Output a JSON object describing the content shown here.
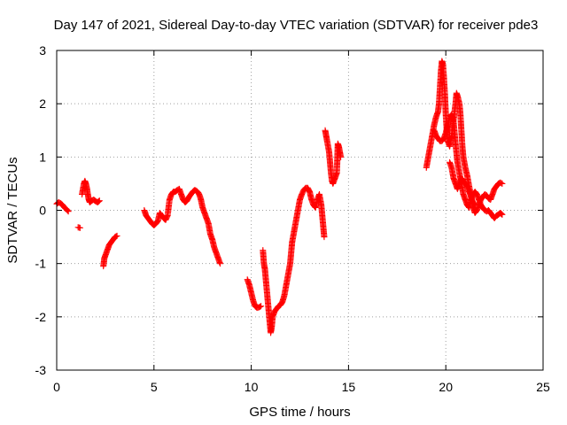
{
  "chart_data": {
    "type": "scatter",
    "title": "Day 147 of 2021, Sidereal Day-to-day VTEC variation (SDTVAR) for receiver pde3",
    "xlabel": "GPS time / hours",
    "ylabel": "SDTVAR / TECUs",
    "xlim": [
      0,
      25
    ],
    "ylim": [
      -3,
      3
    ],
    "xticks": [
      0,
      5,
      10,
      15,
      20,
      25
    ],
    "yticks": [
      -3,
      -2,
      -1,
      0,
      1,
      2,
      3
    ],
    "xtick_labels": [
      "0",
      "5",
      "10",
      "15",
      "20",
      "25"
    ],
    "ytick_labels": [
      "-3",
      "-2",
      "-1",
      "0",
      "1",
      "2",
      "3"
    ],
    "grid": true,
    "marker": "+",
    "color": "#ff0000",
    "series": [
      {
        "name": "pde3",
        "segments": [
          [
            [
              0.0,
              0.12
            ],
            [
              0.1,
              0.15
            ],
            [
              0.2,
              0.13
            ],
            [
              0.3,
              0.1
            ],
            [
              0.4,
              0.05
            ],
            [
              0.5,
              0.02
            ],
            [
              0.6,
              -0.02
            ]
          ],
          [
            [
              1.1,
              -0.32
            ],
            [
              1.2,
              -0.33
            ]
          ],
          [
            [
              1.3,
              0.3
            ],
            [
              1.4,
              0.5
            ],
            [
              1.45,
              0.55
            ],
            [
              1.5,
              0.5
            ],
            [
              1.55,
              0.42
            ],
            [
              1.6,
              0.3
            ],
            [
              1.65,
              0.2
            ],
            [
              1.7,
              0.15
            ],
            [
              1.8,
              0.18
            ],
            [
              1.9,
              0.2
            ],
            [
              2.0,
              0.17
            ],
            [
              2.1,
              0.15
            ],
            [
              2.2,
              0.18
            ]
          ],
          [
            [
              2.4,
              -1.05
            ],
            [
              2.45,
              -0.9
            ],
            [
              2.5,
              -0.85
            ],
            [
              2.6,
              -0.75
            ],
            [
              2.7,
              -0.65
            ],
            [
              2.8,
              -0.6
            ],
            [
              2.9,
              -0.55
            ],
            [
              3.0,
              -0.5
            ],
            [
              3.1,
              -0.48
            ]
          ],
          [
            [
              4.5,
              0.0
            ],
            [
              4.6,
              -0.1
            ],
            [
              4.7,
              -0.15
            ],
            [
              4.8,
              -0.2
            ],
            [
              4.9,
              -0.25
            ],
            [
              5.0,
              -0.28
            ],
            [
              5.1,
              -0.25
            ],
            [
              5.2,
              -0.2
            ],
            [
              5.3,
              -0.05
            ],
            [
              5.4,
              -0.1
            ],
            [
              5.5,
              -0.15
            ],
            [
              5.6,
              -0.18
            ],
            [
              5.7,
              -0.1
            ],
            [
              5.8,
              0.2
            ],
            [
              5.9,
              0.3
            ],
            [
              6.0,
              0.35
            ],
            [
              6.1,
              0.35
            ],
            [
              6.2,
              0.38
            ],
            [
              6.3,
              0.4
            ],
            [
              6.4,
              0.3
            ],
            [
              6.5,
              0.2
            ],
            [
              6.6,
              0.15
            ],
            [
              6.7,
              0.18
            ],
            [
              6.8,
              0.25
            ],
            [
              6.9,
              0.3
            ],
            [
              7.0,
              0.35
            ],
            [
              7.1,
              0.38
            ],
            [
              7.2,
              0.36
            ],
            [
              7.3,
              0.32
            ],
            [
              7.4,
              0.22
            ],
            [
              7.5,
              0.05
            ],
            [
              7.6,
              -0.05
            ],
            [
              7.7,
              -0.15
            ],
            [
              7.8,
              -0.25
            ],
            [
              7.9,
              -0.45
            ],
            [
              8.0,
              -0.55
            ],
            [
              8.1,
              -0.7
            ],
            [
              8.2,
              -0.8
            ],
            [
              8.3,
              -0.9
            ],
            [
              8.4,
              -1.0
            ]
          ],
          [
            [
              9.8,
              -1.3
            ],
            [
              9.9,
              -1.4
            ],
            [
              10.0,
              -1.55
            ],
            [
              10.1,
              -1.7
            ],
            [
              10.2,
              -1.8
            ],
            [
              10.3,
              -1.83
            ],
            [
              10.4,
              -1.82
            ],
            [
              10.5,
              -1.8
            ]
          ],
          [
            [
              10.6,
              -0.75
            ],
            [
              10.65,
              -1.0
            ],
            [
              10.7,
              -1.1
            ],
            [
              10.75,
              -1.3
            ],
            [
              10.8,
              -1.5
            ],
            [
              10.85,
              -1.7
            ],
            [
              10.9,
              -1.9
            ],
            [
              10.95,
              -2.1
            ],
            [
              11.0,
              -2.3
            ],
            [
              11.05,
              -2.2
            ],
            [
              11.1,
              -2.0
            ],
            [
              11.2,
              -1.9
            ],
            [
              11.3,
              -1.85
            ],
            [
              11.4,
              -1.8
            ],
            [
              11.5,
              -1.78
            ],
            [
              11.6,
              -1.72
            ],
            [
              11.7,
              -1.6
            ],
            [
              11.8,
              -1.4
            ],
            [
              11.9,
              -1.2
            ],
            [
              12.0,
              -1.0
            ],
            [
              12.1,
              -0.6
            ],
            [
              12.2,
              -0.4
            ],
            [
              12.3,
              -0.2
            ],
            [
              12.4,
              0.0
            ],
            [
              12.5,
              0.2
            ],
            [
              12.6,
              0.3
            ],
            [
              12.7,
              0.38
            ],
            [
              12.8,
              0.42
            ],
            [
              12.9,
              0.42
            ],
            [
              13.0,
              0.35
            ],
            [
              13.1,
              0.2
            ],
            [
              13.2,
              0.1
            ],
            [
              13.3,
              0.05
            ],
            [
              13.4,
              0.2
            ],
            [
              13.5,
              0.3
            ],
            [
              13.6,
              0.1
            ],
            [
              13.7,
              -0.3
            ],
            [
              13.75,
              -0.5
            ]
          ],
          [
            [
              13.8,
              1.5
            ],
            [
              13.85,
              1.4
            ],
            [
              13.9,
              1.3
            ],
            [
              14.0,
              1.1
            ],
            [
              14.05,
              0.9
            ],
            [
              14.1,
              0.7
            ],
            [
              14.15,
              0.55
            ],
            [
              14.2,
              0.5
            ],
            [
              14.3,
              0.6
            ],
            [
              14.4,
              0.7
            ],
            [
              14.45,
              1.25
            ],
            [
              14.5,
              1.2
            ],
            [
              14.55,
              1.1
            ],
            [
              14.6,
              1.0
            ]
          ],
          [
            [
              19.0,
              0.8
            ],
            [
              19.1,
              1.0
            ],
            [
              19.2,
              1.2
            ],
            [
              19.3,
              1.4
            ],
            [
              19.4,
              1.6
            ],
            [
              19.5,
              1.75
            ],
            [
              19.6,
              1.85
            ],
            [
              19.65,
              2.0
            ],
            [
              19.7,
              2.3
            ],
            [
              19.75,
              2.6
            ],
            [
              19.8,
              2.8
            ],
            [
              19.85,
              2.75
            ],
            [
              19.9,
              2.5
            ],
            [
              19.95,
              2.2
            ],
            [
              20.0,
              1.8
            ],
            [
              20.05,
              1.5
            ],
            [
              20.1,
              1.3
            ],
            [
              20.2,
              1.2
            ],
            [
              20.3,
              1.4
            ],
            [
              20.4,
              1.7
            ],
            [
              20.5,
              2.0
            ],
            [
              20.55,
              2.2
            ],
            [
              20.6,
              2.15
            ],
            [
              20.7,
              2.0
            ],
            [
              20.75,
              1.8
            ],
            [
              20.8,
              1.5
            ],
            [
              20.85,
              1.2
            ],
            [
              20.9,
              1.0
            ],
            [
              21.0,
              0.8
            ],
            [
              21.1,
              0.65
            ],
            [
              21.2,
              0.45
            ],
            [
              21.3,
              0.25
            ],
            [
              21.4,
              0.05
            ],
            [
              21.5,
              -0.05
            ],
            [
              21.6,
              0.0
            ],
            [
              21.7,
              0.1
            ],
            [
              21.8,
              0.2
            ],
            [
              21.9,
              0.25
            ],
            [
              22.0,
              0.3
            ],
            [
              22.1,
              0.28
            ],
            [
              22.2,
              0.22
            ],
            [
              22.3,
              0.2
            ],
            [
              22.4,
              0.3
            ],
            [
              22.5,
              0.4
            ],
            [
              22.6,
              0.45
            ],
            [
              22.7,
              0.5
            ],
            [
              22.8,
              0.52
            ],
            [
              22.9,
              0.5
            ]
          ],
          [
            [
              19.4,
              1.5
            ],
            [
              19.5,
              1.4
            ],
            [
              19.6,
              1.35
            ],
            [
              19.7,
              1.3
            ],
            [
              19.8,
              1.3
            ],
            [
              19.9,
              1.35
            ],
            [
              20.0,
              1.45
            ],
            [
              20.1,
              1.6
            ],
            [
              20.2,
              1.75
            ],
            [
              20.3,
              1.8
            ],
            [
              20.4,
              1.65
            ],
            [
              20.5,
              1.25
            ],
            [
              20.6,
              0.9
            ],
            [
              20.7,
              0.7
            ],
            [
              20.8,
              0.5
            ],
            [
              20.9,
              0.3
            ],
            [
              21.0,
              0.2
            ],
            [
              21.1,
              0.1
            ],
            [
              21.2,
              0.05
            ],
            [
              21.3,
              0.2
            ],
            [
              21.4,
              0.3
            ],
            [
              21.5,
              0.35
            ],
            [
              21.6,
              0.3
            ],
            [
              21.7,
              0.2
            ],
            [
              21.8,
              0.1
            ],
            [
              21.9,
              0.05
            ],
            [
              22.0,
              0.0
            ],
            [
              22.1,
              -0.02
            ],
            [
              22.2,
              0.0
            ],
            [
              22.3,
              -0.05
            ],
            [
              22.4,
              -0.1
            ],
            [
              22.5,
              -0.15
            ],
            [
              22.6,
              -0.1
            ],
            [
              22.7,
              -0.08
            ],
            [
              22.8,
              -0.05
            ],
            [
              22.9,
              -0.08
            ]
          ],
          [
            [
              20.2,
              0.9
            ],
            [
              20.3,
              0.8
            ],
            [
              20.4,
              0.6
            ],
            [
              20.5,
              0.5
            ],
            [
              20.6,
              0.4
            ],
            [
              20.7,
              0.5
            ],
            [
              20.8,
              0.6
            ],
            [
              20.9,
              0.55
            ],
            [
              21.0,
              0.5
            ],
            [
              21.1,
              0.45
            ],
            [
              21.2,
              0.35
            ],
            [
              21.3,
              0.25
            ],
            [
              21.4,
              0.15
            ],
            [
              21.5,
              0.1
            ]
          ]
        ]
      }
    ]
  }
}
